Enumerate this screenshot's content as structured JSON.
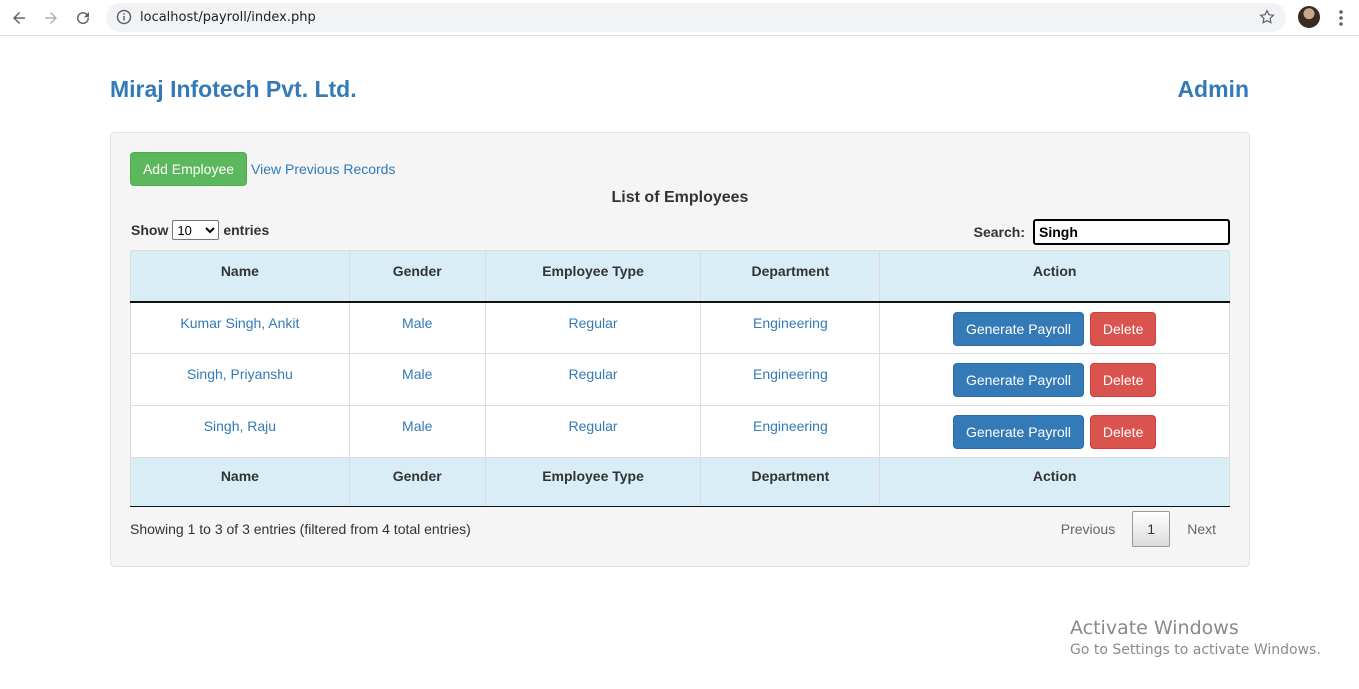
{
  "browser": {
    "url": "localhost/payroll/index.php"
  },
  "header": {
    "company": "Miraj Infotech Pvt. Ltd.",
    "user": "Admin"
  },
  "toolbar": {
    "add_label": "Add Employee",
    "prev_records_label": "View Previous Records"
  },
  "list_title": "List of Employees",
  "length": {
    "show_label": "Show",
    "value": "10",
    "entries_label": "entries"
  },
  "search": {
    "label": "Search:",
    "value": "Singh"
  },
  "table": {
    "columns": [
      "Name",
      "Gender",
      "Employee Type",
      "Department",
      "Action"
    ],
    "rows": [
      {
        "name": "Kumar Singh, Ankit",
        "gender": "Male",
        "type": "Regular",
        "department": "Engineering"
      },
      {
        "name": "Singh, Priyanshu",
        "gender": "Male",
        "type": "Regular",
        "department": "Engineering"
      },
      {
        "name": "Singh, Raju",
        "gender": "Male",
        "type": "Regular",
        "department": "Engineering"
      }
    ],
    "generate_label": "Generate Payroll",
    "delete_label": "Delete"
  },
  "footer": {
    "info": "Showing 1 to 3 of 3 entries (filtered from 4 total entries)",
    "previous": "Previous",
    "page": "1",
    "next": "Next"
  },
  "watermark": {
    "line1": "Activate Windows",
    "line2": "Go to Settings to activate Windows."
  },
  "colors": {
    "brand": "#337ab7",
    "success": "#5cb85c",
    "danger": "#d9534f",
    "header_row": "#d9edf7"
  }
}
